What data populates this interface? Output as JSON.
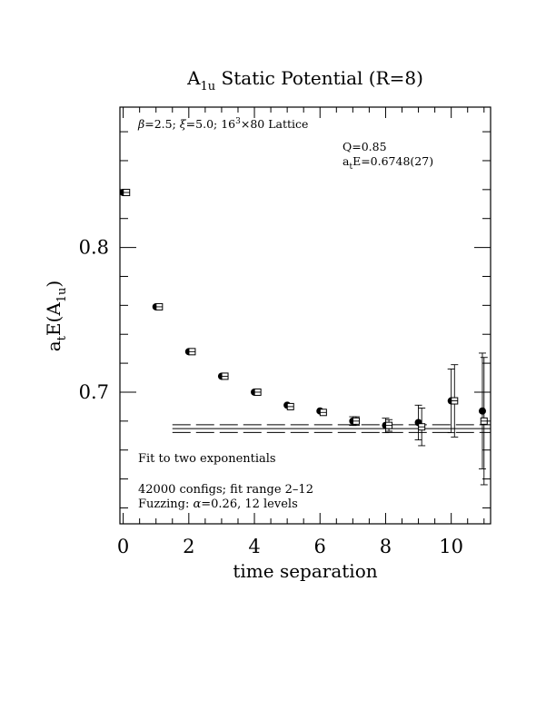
{
  "chart_data": {
    "type": "scatter",
    "title": "A",
    "title_sub": "1u",
    "title_rest": " Static Potential (R=8)",
    "xlabel": "time separation",
    "ylabel_main": "a",
    "ylabel_sub1": "t",
    "ylabel_mid": "E(A",
    "ylabel_sub2": "1u",
    "ylabel_end": ")",
    "xlim": [
      -0.1,
      11.2
    ],
    "ylim": [
      0.609,
      0.897
    ],
    "xticks": [
      0,
      2,
      4,
      6,
      8,
      10
    ],
    "xtick_labels": [
      "0",
      "2",
      "4",
      "6",
      "8",
      "10"
    ],
    "yticks": [
      0.7,
      0.8
    ],
    "ytick_labels": [
      "0.7",
      "0.8"
    ],
    "grid": false,
    "series": [
      {
        "marker": "filled-circle",
        "points": [
          {
            "x": 0,
            "y": 0.838,
            "err": 0.0
          },
          {
            "x": 1,
            "y": 0.759,
            "err": 0.0
          },
          {
            "x": 2,
            "y": 0.728,
            "err": 0.0
          },
          {
            "x": 3,
            "y": 0.711,
            "err": 0.0
          },
          {
            "x": 4,
            "y": 0.7,
            "err": 0.0
          },
          {
            "x": 5,
            "y": 0.691,
            "err": 0.0
          },
          {
            "x": 6,
            "y": 0.687,
            "err": 0.0
          },
          {
            "x": 7,
            "y": 0.68,
            "err": 0.003
          },
          {
            "x": 8,
            "y": 0.677,
            "err": 0.005
          },
          {
            "x": 9,
            "y": 0.679,
            "err": 0.012
          },
          {
            "x": 10,
            "y": 0.694,
            "err": 0.022
          },
          {
            "x": 10.95,
            "y": 0.687,
            "err": 0.04
          }
        ]
      },
      {
        "marker": "open-square",
        "points": [
          {
            "x": 0.1,
            "y": 0.838,
            "err": 0.0
          },
          {
            "x": 1.1,
            "y": 0.759,
            "err": 0.0
          },
          {
            "x": 2.1,
            "y": 0.728,
            "err": 0.0
          },
          {
            "x": 3.1,
            "y": 0.711,
            "err": 0.0
          },
          {
            "x": 4.1,
            "y": 0.7,
            "err": 0.0
          },
          {
            "x": 5.1,
            "y": 0.69,
            "err": 0.0
          },
          {
            "x": 6.1,
            "y": 0.686,
            "err": 0.0
          },
          {
            "x": 7.1,
            "y": 0.68,
            "err": 0.003
          },
          {
            "x": 8.1,
            "y": 0.677,
            "err": 0.004
          },
          {
            "x": 9.1,
            "y": 0.676,
            "err": 0.013
          },
          {
            "x": 10.1,
            "y": 0.694,
            "err": 0.025
          },
          {
            "x": 11.0,
            "y": 0.68,
            "err": 0.044
          }
        ]
      }
    ],
    "fit": {
      "x_range": [
        1.5,
        11.2
      ],
      "central": 0.6748,
      "error": 0.0027,
      "style": "solid central line with dashed error band"
    },
    "annotations": {
      "lattice": {
        "beta_sym": "β",
        "beta_val": "=2.5; ",
        "xi_sym": "ξ",
        "xi_val": "=5.0; 16",
        "exp": "3",
        "rest": "×80 Lattice"
      },
      "q_value": "Q=0.85",
      "energy": {
        "prefix": "a",
        "sub": "t",
        "rest": "E=0.6748(27)"
      },
      "fit_label": "Fit to two exponentials",
      "configs": "42000 configs; fit range 2–12",
      "fuzzing": {
        "prefix": "Fuzzing: ",
        "alpha": "α",
        "rest": "=0.26, 12 levels"
      }
    }
  }
}
